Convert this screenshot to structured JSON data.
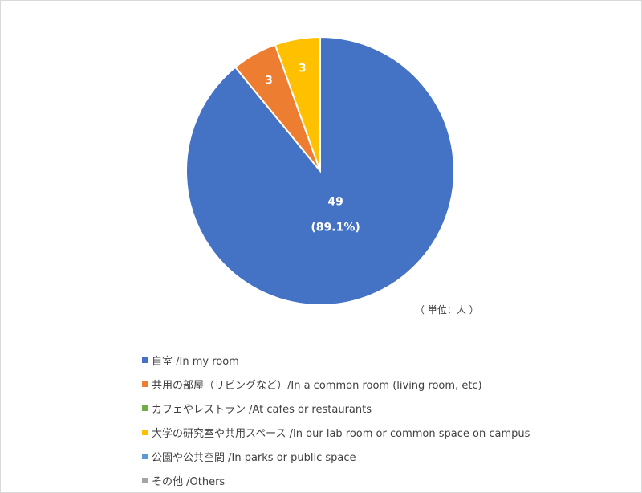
{
  "chart_data": {
    "type": "pie",
    "unit_note": "（ 単位：人 ）",
    "start_angle_deg": 0,
    "direction": "clockwise",
    "slices": [
      {
        "label": "自室 /In my room",
        "value": 49,
        "percent_label": "(89.1%)",
        "color": "#4472c4",
        "show_label": true
      },
      {
        "label": "共用の部屋（リビングなど）/In a common room (living room, etc)",
        "value": 3,
        "percent_label": "",
        "color": "#ed7d31",
        "show_label": true
      },
      {
        "label": "カフェやレストラン /At cafes or restaurants",
        "value": 0,
        "percent_label": "",
        "color": "#70ad47",
        "show_label": false
      },
      {
        "label": "大学の研究室や共用スペース /In our lab room or common space on campus",
        "value": 3,
        "percent_label": "",
        "color": "#ffc000",
        "show_label": true
      },
      {
        "label": "公園や公共空間 /In parks or public space",
        "value": 0,
        "percent_label": "",
        "color": "#5b9bd5",
        "show_label": false
      },
      {
        "label": "その他 /Others",
        "value": 0,
        "percent_label": "",
        "color": "#a5a5a5",
        "show_label": false
      }
    ]
  }
}
